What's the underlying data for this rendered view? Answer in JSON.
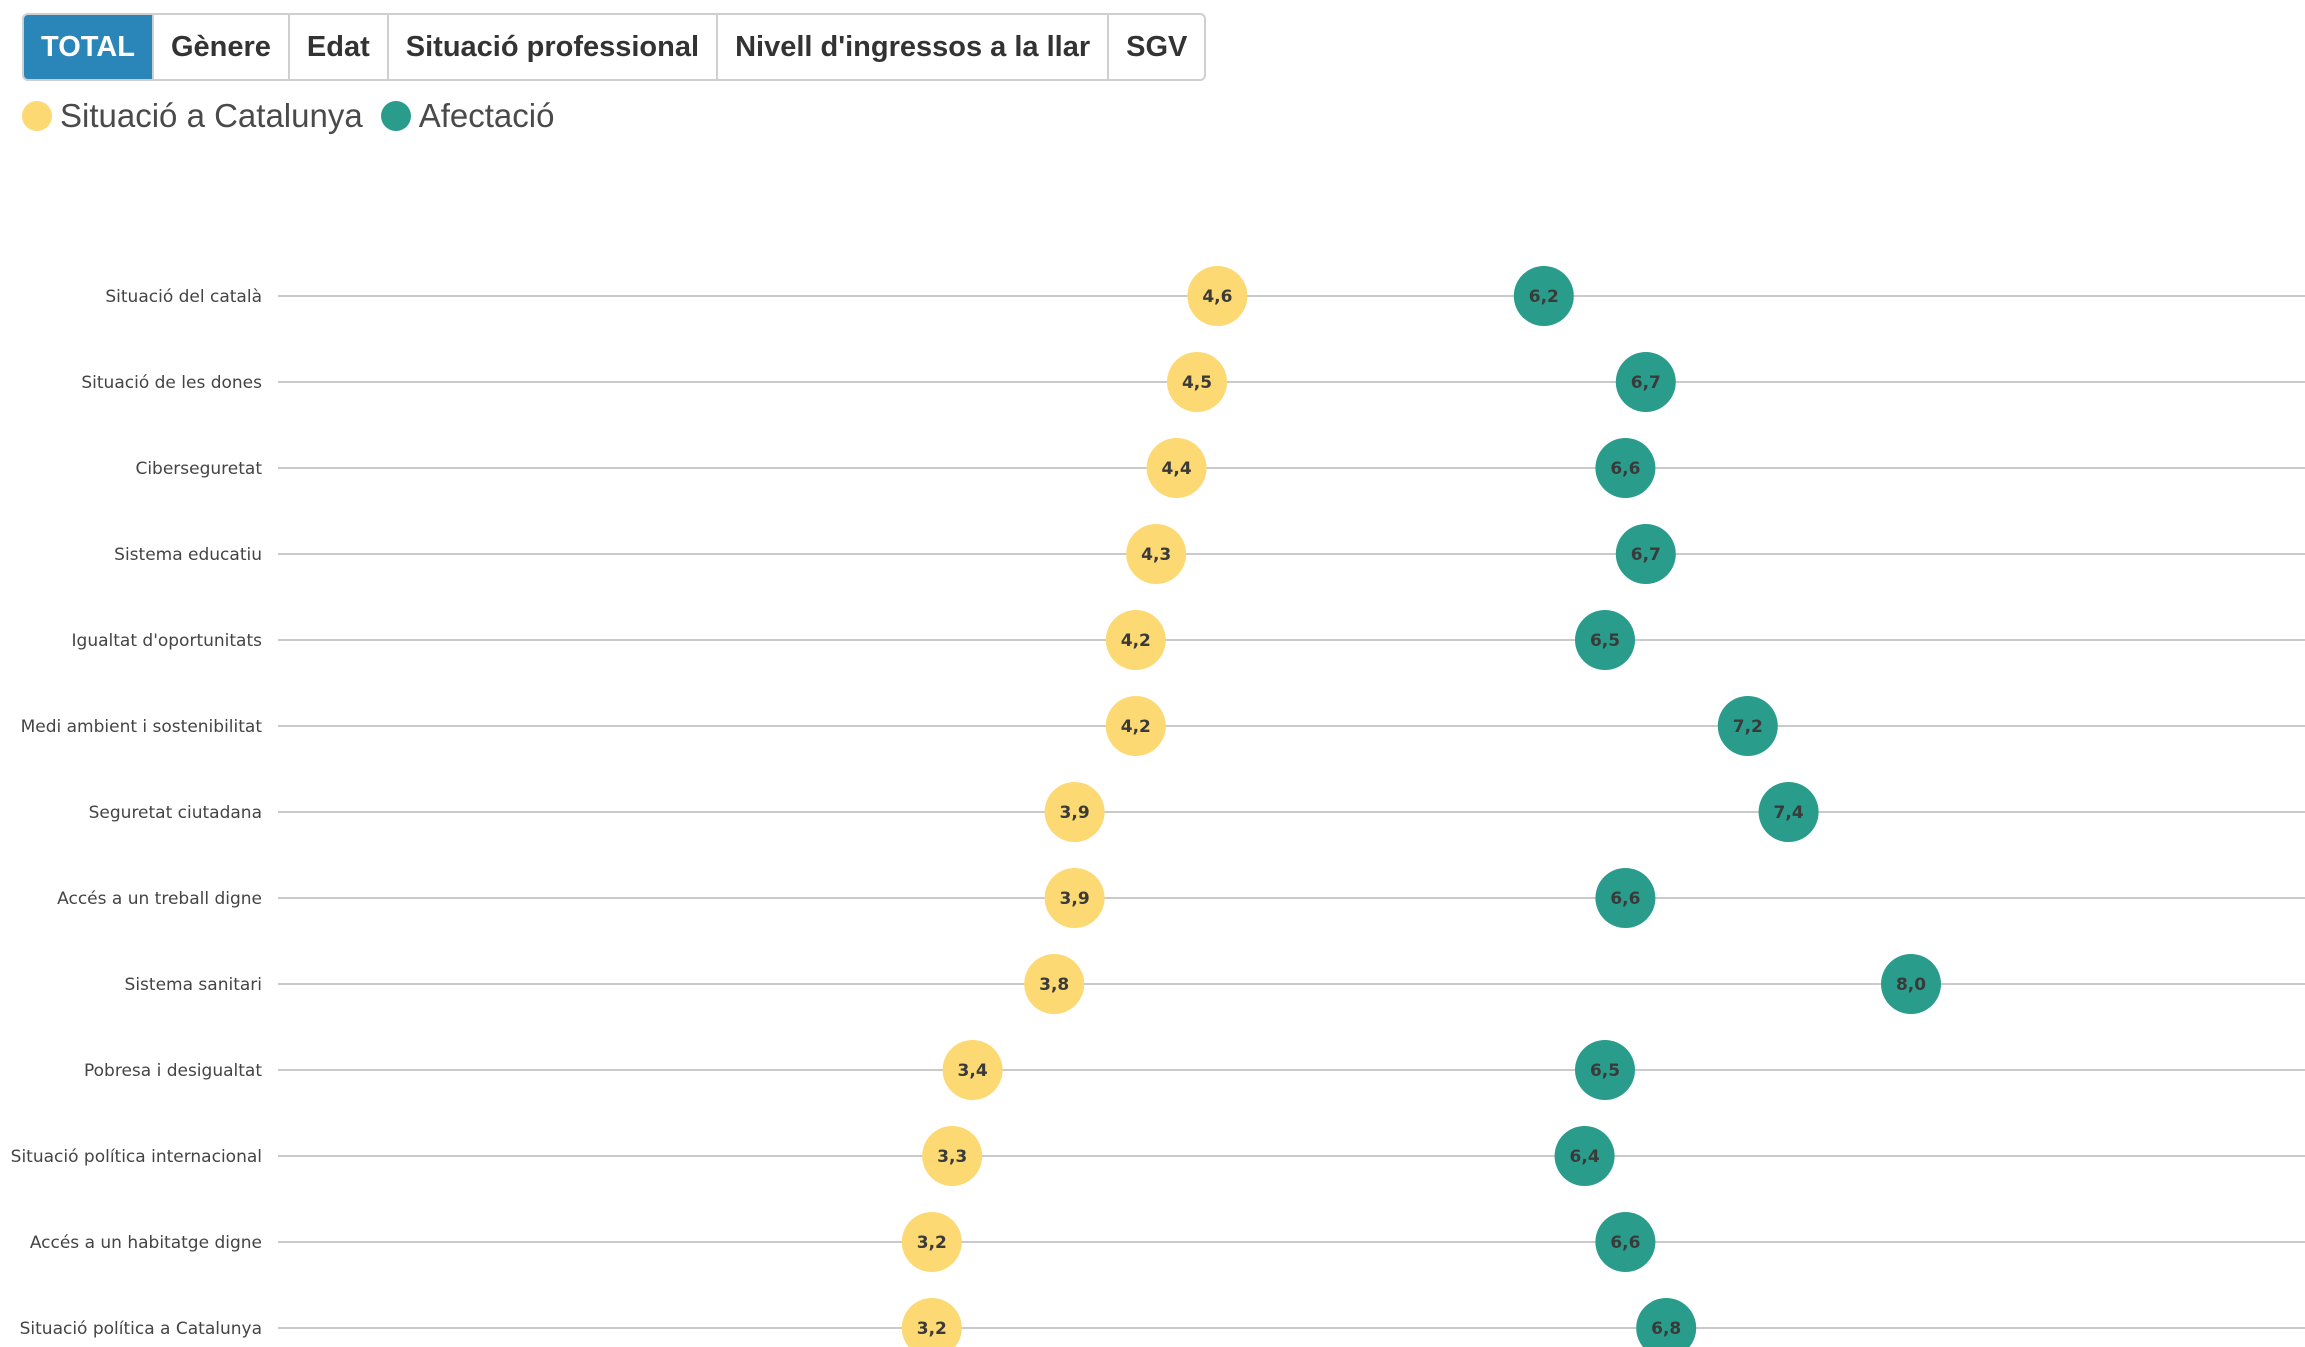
{
  "tabs": [
    {
      "label": "TOTAL",
      "active": true
    },
    {
      "label": "Gènere",
      "active": false
    },
    {
      "label": "Edat",
      "active": false
    },
    {
      "label": "Situació professional",
      "active": false
    },
    {
      "label": "Nivell d'ingressos a la llar",
      "active": false
    },
    {
      "label": "SGV",
      "active": false
    }
  ],
  "legend": [
    {
      "label": "Situació a Catalunya",
      "color": "#fcd972"
    },
    {
      "label": "Afectació",
      "color": "#2a9c8b"
    }
  ],
  "chart_data": {
    "type": "scatter",
    "title": "",
    "xlabel": "",
    "ylabel": "",
    "xlim": [
      0,
      10
    ],
    "grid": false,
    "legend_position": "top-left",
    "categories": [
      "Situació del català",
      "Situació de les dones",
      "Ciberseguretat",
      "Sistema educatiu",
      "Igualtat d'oportunitats",
      "Medi ambient i sostenibilitat",
      "Seguretat ciutadana",
      "Accés a un treball digne",
      "Sistema sanitari",
      "Pobresa i desigualtat",
      "Situació política internacional",
      "Accés a un habitatge digne",
      "Situació política a Catalunya"
    ],
    "series": [
      {
        "name": "Situació a Catalunya",
        "color": "#fcd972",
        "values": [
          4.6,
          4.5,
          4.4,
          4.3,
          4.2,
          4.2,
          3.9,
          3.9,
          3.8,
          3.4,
          3.3,
          3.2,
          3.2
        ],
        "labels": [
          "4,6",
          "4,5",
          "4,4",
          "4,3",
          "4,2",
          "4,2",
          "3,9",
          "3,9",
          "3,8",
          "3,4",
          "3,3",
          "3,2",
          "3,2"
        ]
      },
      {
        "name": "Afectació",
        "color": "#2a9c8b",
        "values": [
          6.2,
          6.7,
          6.6,
          6.7,
          6.5,
          7.2,
          7.4,
          6.6,
          8.0,
          6.5,
          6.4,
          6.6,
          6.8
        ],
        "labels": [
          "6,2",
          "6,7",
          "6,6",
          "6,7",
          "6,5",
          "7,2",
          "7,4",
          "6,6",
          "8,0",
          "6,5",
          "6,4",
          "6,6",
          "6,8"
        ]
      }
    ]
  }
}
